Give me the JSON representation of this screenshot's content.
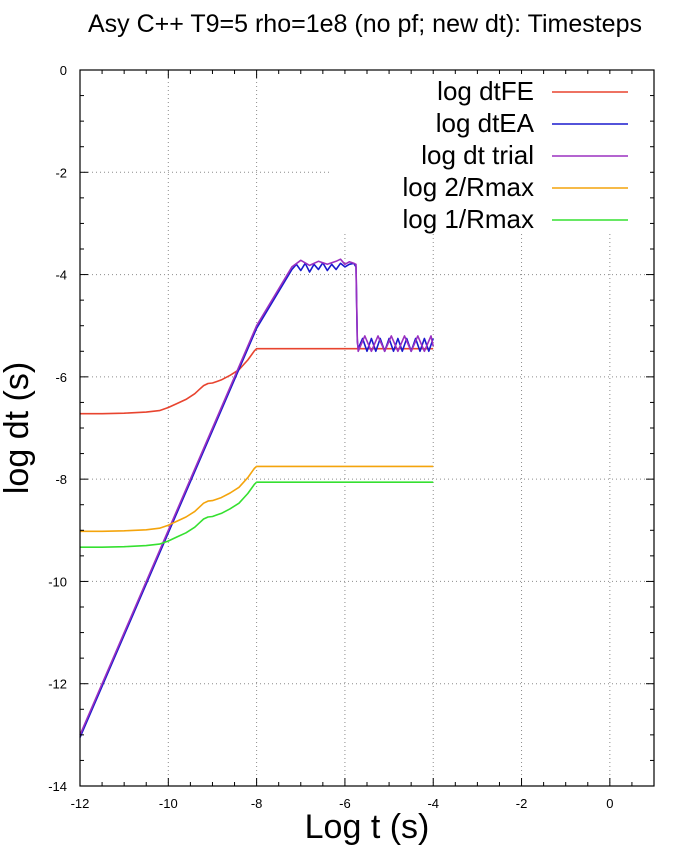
{
  "chart_data": {
    "type": "line",
    "title": "Asy C++ T9=5 rho=1e8 (no pf; new dt): Timesteps",
    "xlabel": "Log t (s)",
    "ylabel": "log dt (s)",
    "xlim": [
      -12,
      1
    ],
    "ylim": [
      -14,
      0
    ],
    "xticks": [
      -12,
      -10,
      -8,
      -6,
      -4,
      -2,
      0
    ],
    "yticks": [
      0,
      -2,
      -4,
      -6,
      -8,
      -10,
      -12,
      -14
    ],
    "grid": true,
    "legend": "top-right",
    "series": [
      {
        "name": "log dtFE",
        "color": "#e8442f",
        "x": [
          -12,
          -11.5,
          -11,
          -10.5,
          -10.2,
          -10,
          -9.8,
          -9.6,
          -9.4,
          -9.3,
          -9.2,
          -9.1,
          -9.0,
          -8.9,
          -8.8,
          -8.6,
          -8.4,
          -8.2,
          -8.05,
          -8.0,
          -7,
          -6,
          -5,
          -4
        ],
        "y": [
          -6.72,
          -6.72,
          -6.71,
          -6.69,
          -6.66,
          -6.6,
          -6.52,
          -6.44,
          -6.33,
          -6.25,
          -6.17,
          -6.13,
          -6.12,
          -6.09,
          -6.06,
          -5.97,
          -5.86,
          -5.67,
          -5.49,
          -5.45,
          -5.45,
          -5.45,
          -5.45,
          -5.45
        ]
      },
      {
        "name": "log dtEA",
        "color": "#1a1acd",
        "x": [
          -12,
          -11,
          -10,
          -9,
          -8,
          -7.2,
          -7.1,
          -7.0,
          -6.9,
          -6.8,
          -6.7,
          -6.6,
          -6.5,
          -6.4,
          -6.3,
          -6.2,
          -6.1,
          -6.0,
          -5.9,
          -5.8,
          -5.75,
          -5.72,
          -5.7,
          -5.6,
          -5.5,
          -5.4,
          -5.3,
          -5.2,
          -5.1,
          -5.0,
          -4.9,
          -4.8,
          -4.7,
          -4.6,
          -4.5,
          -4.4,
          -4.3,
          -4.2,
          -4.1,
          -4.0
        ],
        "y": [
          -13.05,
          -11.05,
          -9.05,
          -7.05,
          -5.05,
          -3.9,
          -3.8,
          -3.92,
          -3.78,
          -3.95,
          -3.8,
          -3.9,
          -3.77,
          -3.92,
          -3.8,
          -3.9,
          -3.78,
          -3.85,
          -3.8,
          -3.78,
          -3.85,
          -5.3,
          -5.45,
          -5.25,
          -5.5,
          -5.25,
          -5.5,
          -5.25,
          -5.5,
          -5.25,
          -5.5,
          -5.25,
          -5.5,
          -5.25,
          -5.5,
          -5.25,
          -5.5,
          -5.25,
          -5.5,
          -5.25
        ]
      },
      {
        "name": "log dt trial",
        "color": "#9b30c0",
        "x": [
          -12,
          -11,
          -10,
          -9,
          -8,
          -7.2,
          -7.0,
          -6.8,
          -6.6,
          -6.4,
          -6.2,
          -6.1,
          -6.0,
          -5.9,
          -5.8,
          -5.75,
          -5.72,
          -5.7,
          -5.55,
          -5.4,
          -5.25,
          -5.1,
          -4.95,
          -4.8,
          -4.65,
          -4.5,
          -4.35,
          -4.2,
          -4.05,
          -4.0
        ],
        "y": [
          -13.0,
          -11.0,
          -9.0,
          -7.0,
          -5.0,
          -3.85,
          -3.72,
          -3.82,
          -3.74,
          -3.8,
          -3.74,
          -3.7,
          -3.8,
          -3.75,
          -3.78,
          -3.8,
          -5.25,
          -5.5,
          -5.2,
          -5.5,
          -5.2,
          -5.5,
          -5.2,
          -5.5,
          -5.2,
          -5.5,
          -5.2,
          -5.5,
          -5.2,
          -5.4
        ]
      },
      {
        "name": "log 2/Rmax",
        "color": "#f4a40c",
        "x": [
          -12,
          -11.5,
          -11,
          -10.5,
          -10.2,
          -10,
          -9.8,
          -9.6,
          -9.4,
          -9.3,
          -9.2,
          -9.1,
          -9.0,
          -8.9,
          -8.8,
          -8.6,
          -8.4,
          -8.2,
          -8.05,
          -8.0,
          -7,
          -6,
          -5,
          -4
        ],
        "y": [
          -9.02,
          -9.02,
          -9.01,
          -8.99,
          -8.96,
          -8.9,
          -8.82,
          -8.74,
          -8.63,
          -8.55,
          -8.47,
          -8.43,
          -8.42,
          -8.39,
          -8.36,
          -8.27,
          -8.16,
          -7.97,
          -7.79,
          -7.75,
          -7.75,
          -7.75,
          -7.75,
          -7.75
        ]
      },
      {
        "name": "log 1/Rmax",
        "color": "#35e030",
        "x": [
          -12,
          -11.5,
          -11,
          -10.5,
          -10.2,
          -10,
          -9.8,
          -9.6,
          -9.4,
          -9.3,
          -9.2,
          -9.1,
          -9.0,
          -8.9,
          -8.8,
          -8.6,
          -8.4,
          -8.2,
          -8.05,
          -8.0,
          -7,
          -6,
          -5,
          -4
        ],
        "y": [
          -9.33,
          -9.33,
          -9.32,
          -9.3,
          -9.27,
          -9.21,
          -9.13,
          -9.05,
          -8.94,
          -8.86,
          -8.78,
          -8.74,
          -8.73,
          -8.7,
          -8.67,
          -8.58,
          -8.47,
          -8.28,
          -8.1,
          -8.06,
          -8.06,
          -8.06,
          -8.06,
          -8.06
        ]
      }
    ]
  }
}
